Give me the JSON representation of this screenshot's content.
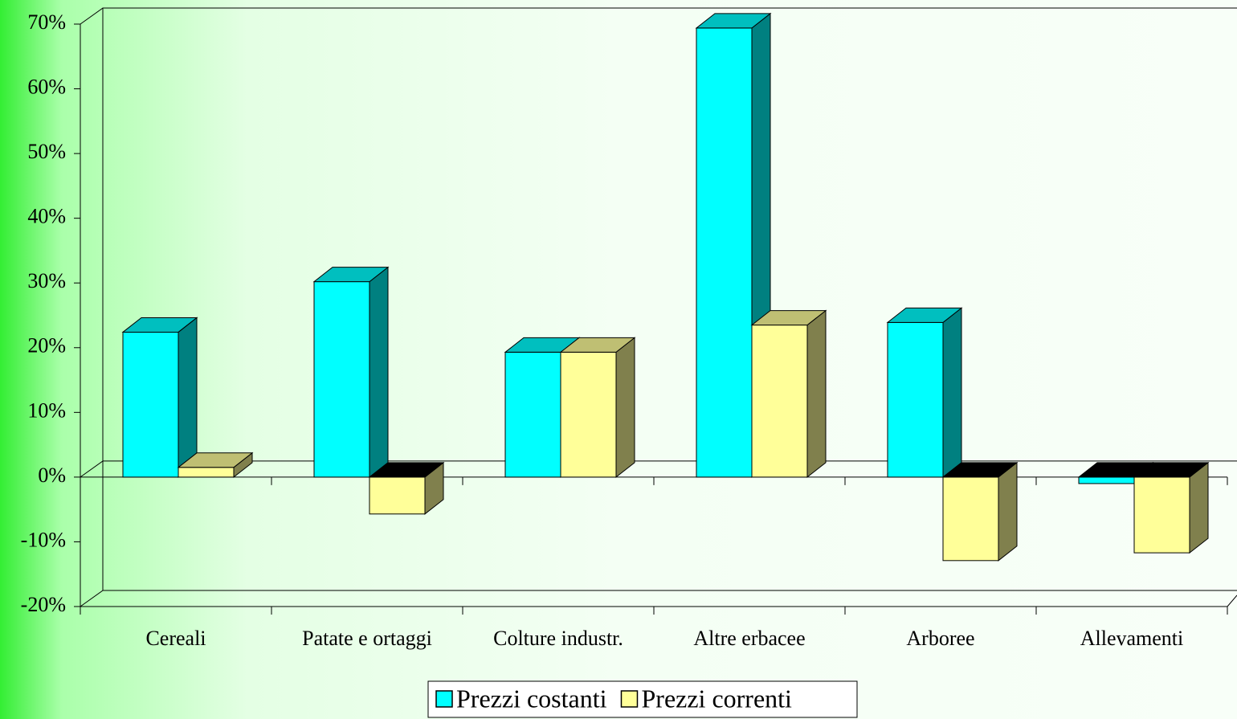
{
  "chart_data": {
    "type": "bar3d",
    "categories": [
      "Cereali",
      "Patate e ortaggi",
      "Colture industr.",
      "Altre erbacee",
      "Arboree",
      "Allevamenti"
    ],
    "series": [
      {
        "name": "Prezzi costanti",
        "color": "#00ffff",
        "values": [
          22.4,
          30.2,
          19.3,
          69.4,
          23.9,
          -1.0
        ]
      },
      {
        "name": "Prezzi correnti",
        "color": "#ffff99",
        "values": [
          1.5,
          -5.7,
          19.3,
          23.5,
          -12.9,
          -11.7
        ]
      }
    ],
    "ylim": [
      -20,
      70
    ],
    "yticks": [
      {
        "value": -20,
        "label": "-20%"
      },
      {
        "value": -10,
        "label": "-10%"
      },
      {
        "value": 0,
        "label": "0%"
      },
      {
        "value": 10,
        "label": "10%"
      },
      {
        "value": 20,
        "label": "20%"
      },
      {
        "value": 30,
        "label": "30%"
      },
      {
        "value": 40,
        "label": "40%"
      },
      {
        "value": 50,
        "label": "50%"
      },
      {
        "value": 60,
        "label": "60%"
      },
      {
        "value": 70,
        "label": "70%"
      }
    ],
    "legend": "bottom"
  }
}
